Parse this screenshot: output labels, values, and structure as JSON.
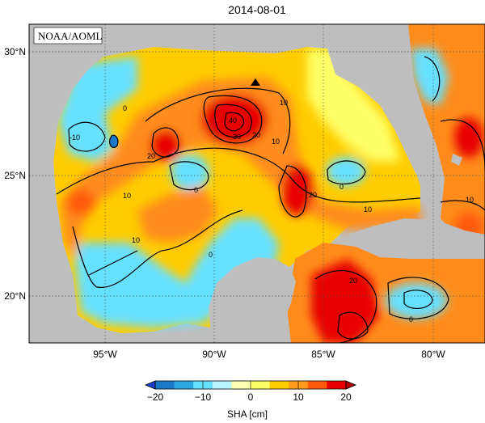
{
  "title": "2014-08-01",
  "credit": "NOAA/AOML",
  "map": {
    "lon_labels": [
      "95°W",
      "90°W",
      "85°W",
      "80°W"
    ],
    "lat_labels": [
      "30°N",
      "25°N",
      "20°N"
    ],
    "grid": true,
    "land_color": "#bebebe",
    "ocean_colors": {
      "deep_positive": "#e80000",
      "positive": "#ff8c1a",
      "mild_positive": "#ffcc00",
      "near_zero": "#ffff66",
      "negative": "#66e0ff",
      "deep_negative": "#1a78c8"
    },
    "contour_labels": [
      "0",
      "10",
      "20",
      "30",
      "40",
      "-10",
      "0",
      "10",
      "20",
      "0",
      "10",
      "20",
      "0",
      "10",
      "20",
      "0",
      "10",
      "10"
    ],
    "marker_symbol": "triangle"
  },
  "colorbar": {
    "label": "SHA [cm]",
    "ticks": [
      "−20",
      "−10",
      "0",
      "10",
      "20"
    ],
    "range": [
      -20,
      20
    ],
    "colors": [
      "#1a3fd6",
      "#1a78c8",
      "#2aa8e0",
      "#66e0ff",
      "#b8f4ff",
      "#ffffb0",
      "#ffff66",
      "#ffcc00",
      "#ff9a1a",
      "#ff5a0a",
      "#e80000",
      "#b00000"
    ]
  }
}
